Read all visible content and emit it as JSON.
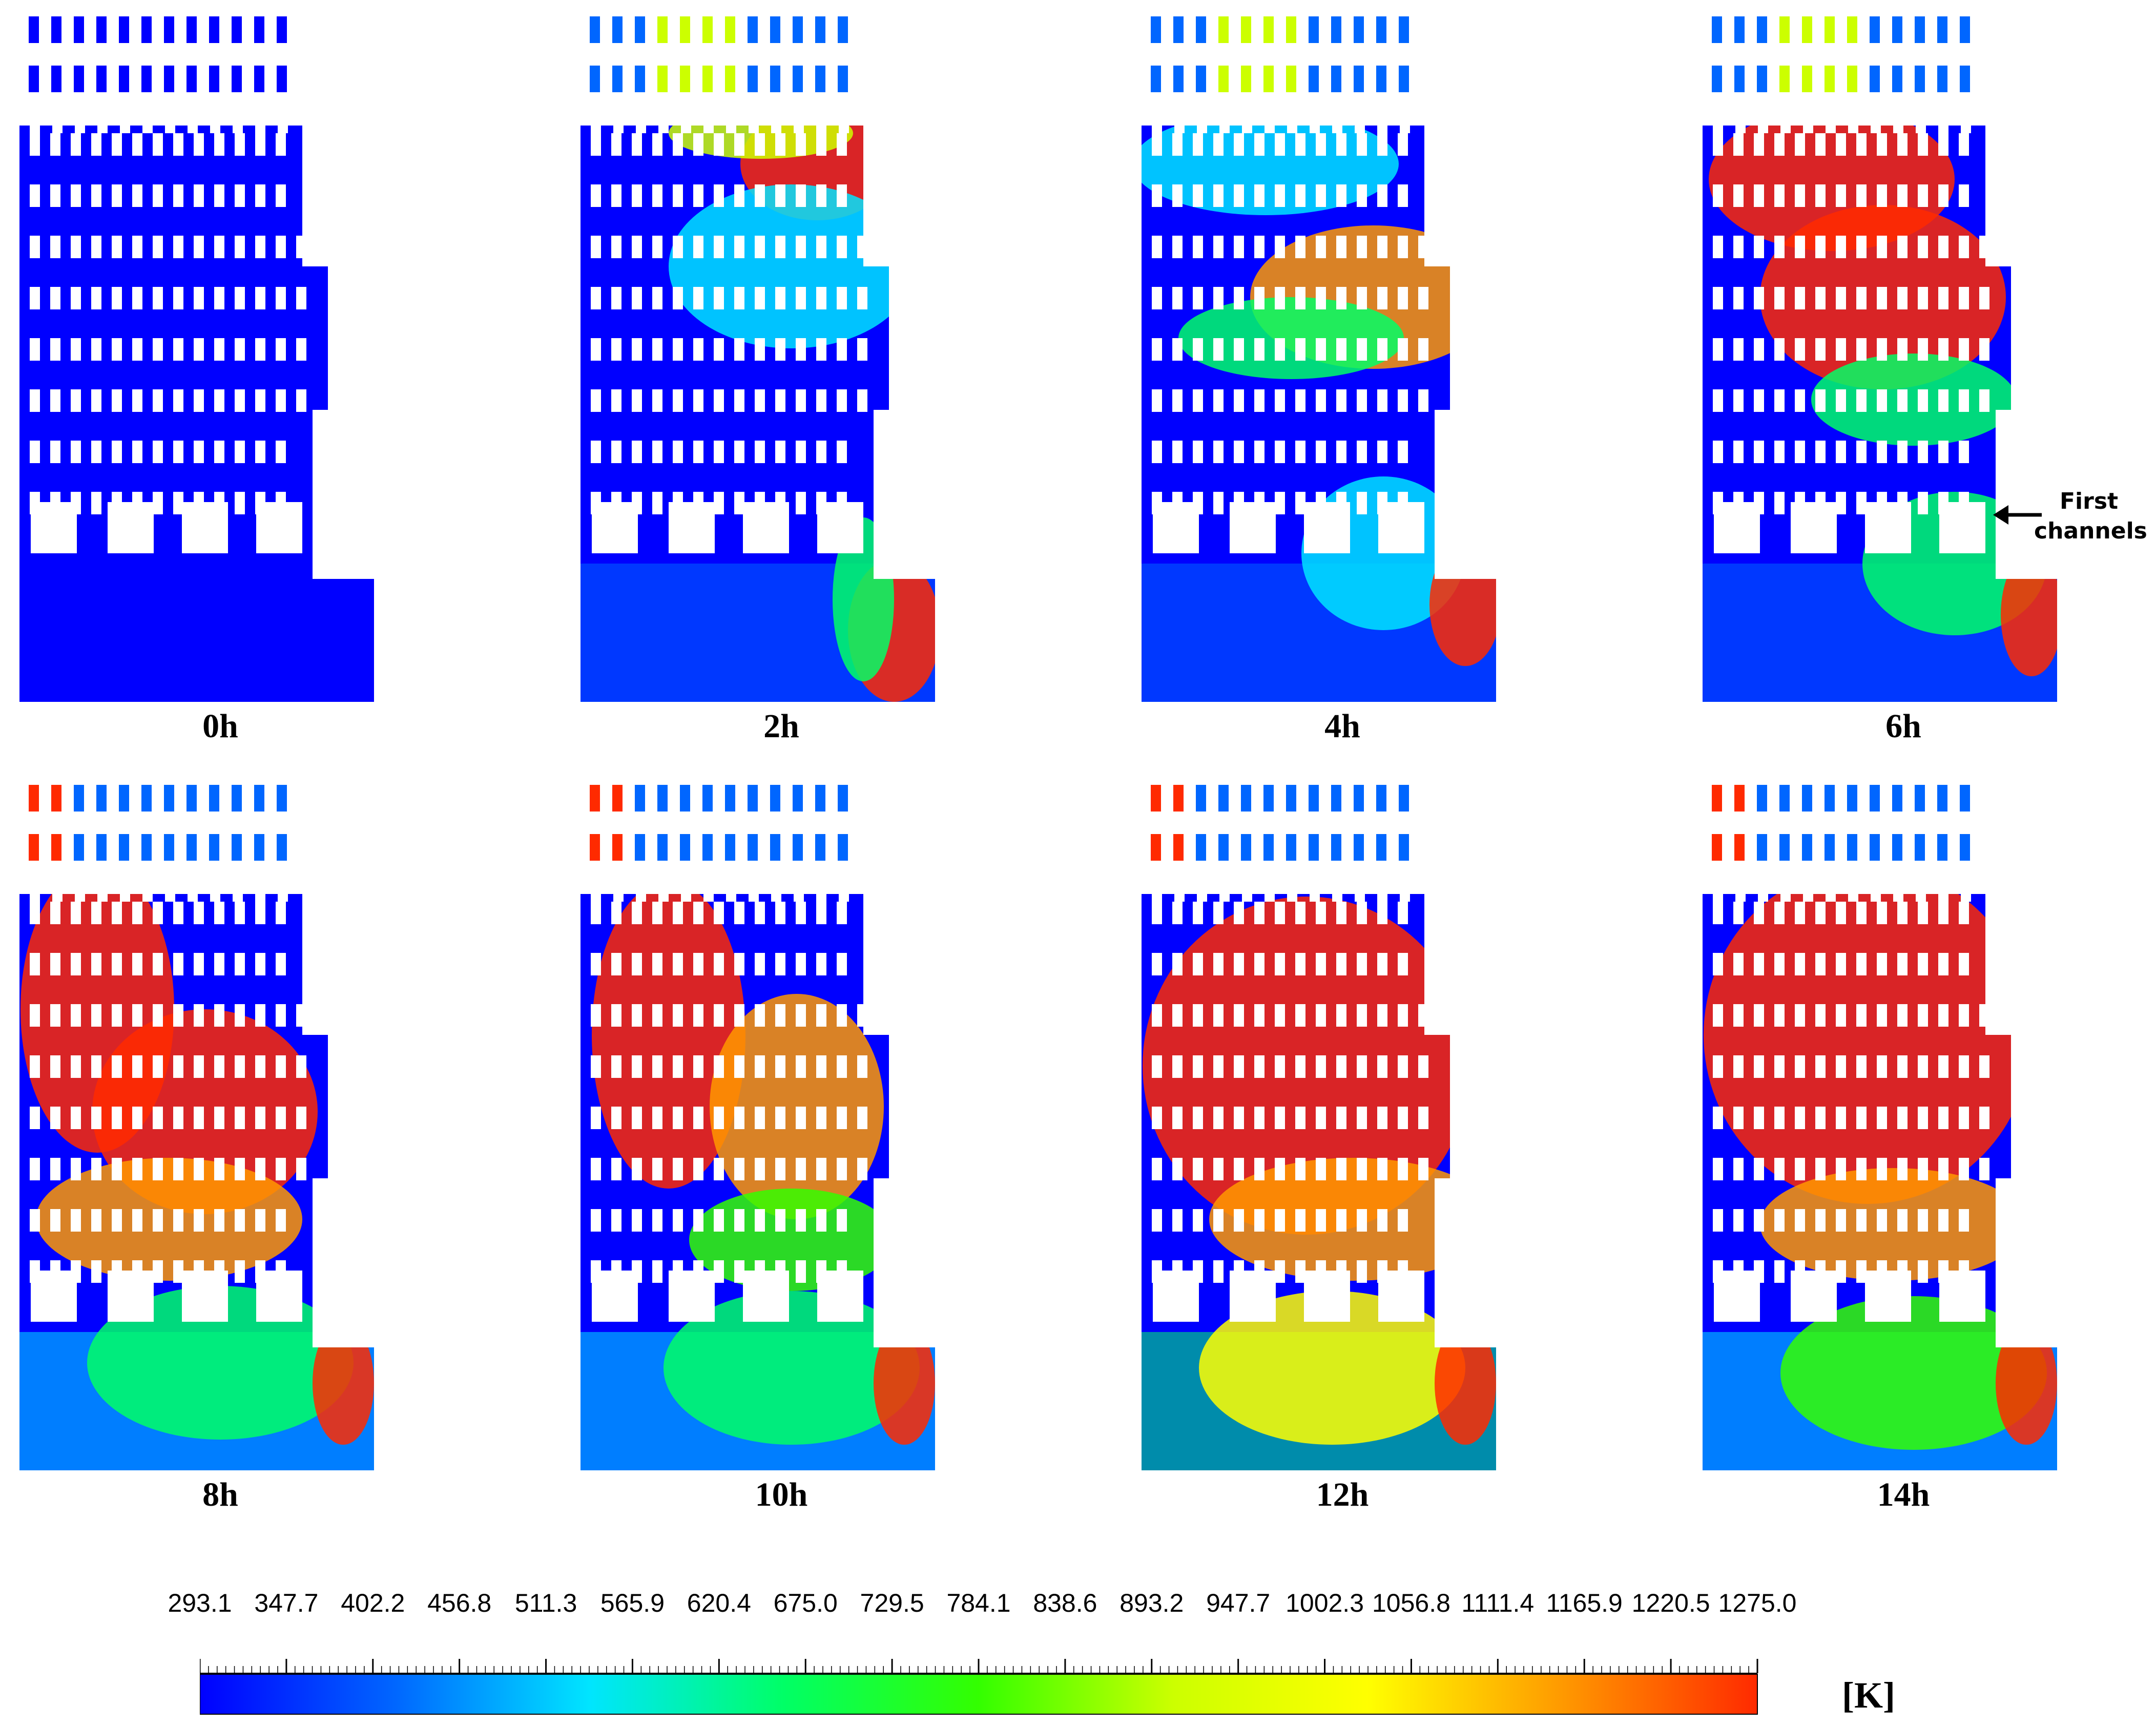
{
  "figure": {
    "panels": [
      {
        "label": "0h",
        "state": 0
      },
      {
        "label": "2h",
        "state": 1
      },
      {
        "label": "4h",
        "state": 2
      },
      {
        "label": "6h",
        "state": 3
      },
      {
        "label": "8h",
        "state": 4
      },
      {
        "label": "10h",
        "state": 5
      },
      {
        "label": "12h",
        "state": 6
      },
      {
        "label": "14h",
        "state": 7
      }
    ],
    "annotation": {
      "line1": "First",
      "line2": "channels"
    }
  },
  "colorbar": {
    "ticks": [
      "293.1",
      "347.7",
      "402.2",
      "456.8",
      "511.3",
      "565.9",
      "620.4",
      "675.0",
      "729.5",
      "784.1",
      "838.6",
      "893.2",
      "947.7",
      "1002.3",
      "1056.8",
      "1111.4",
      "1165.9",
      "1220.5",
      "1275.0"
    ],
    "unit": "[K]",
    "min": 293.1,
    "max": 1275.0,
    "colors": [
      "#0000ff",
      "#0066ff",
      "#00e5ff",
      "#00ff66",
      "#33ff00",
      "#ccff00",
      "#ffff00",
      "#ff9900",
      "#ff2a00"
    ]
  }
}
